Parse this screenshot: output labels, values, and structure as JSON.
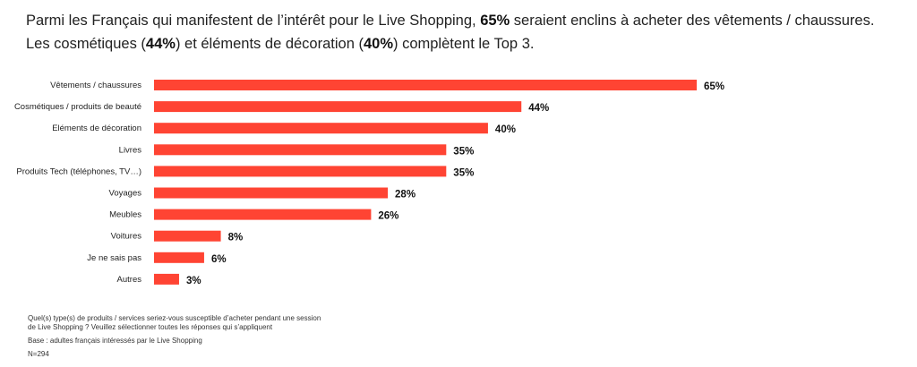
{
  "headline": {
    "line1_a": "Parmi les Français qui manifestent de l’intérêt pour le Live Shopping, ",
    "line1_b": "65%",
    "line1_c": " seraient enclins à acheter des vêtements / chaussures.",
    "line2_a": "Les cosmétiques (",
    "line2_b": "44%",
    "line2_c": ") et éléments de décoration (",
    "line2_d": "40%",
    "line2_e": ") complètent le Top 3."
  },
  "chart_data": {
    "type": "bar",
    "orientation": "horizontal",
    "categories": [
      "Vêtements / chaussures",
      "Cosmétiques / produits de beauté",
      "Eléments de décoration",
      "Livres",
      "Produits Tech (téléphones, TV…)",
      "Voyages",
      "Meubles",
      "Voitures",
      "Je ne sais pas",
      "Autres"
    ],
    "values": [
      65,
      44,
      40,
      35,
      35,
      28,
      26,
      8,
      6,
      3
    ],
    "value_labels": [
      "65%",
      "44%",
      "40%",
      "35%",
      "35%",
      "28%",
      "26%",
      "8%",
      "6%",
      "3%"
    ],
    "bar_color": "#ff4433",
    "xlim": [
      0,
      65
    ],
    "grid": false,
    "title": "",
    "xlabel": "",
    "ylabel": ""
  },
  "footnotes": {
    "question": "Quel(s) type(s) de produits / services seriez-vous susceptible d’acheter pendant une session de Live Shopping ? Veuillez sélectionner toutes les réponses qui s’appliquent",
    "base": "Base : adultes français intéressés par le Live Shopping",
    "n": "N=294"
  }
}
